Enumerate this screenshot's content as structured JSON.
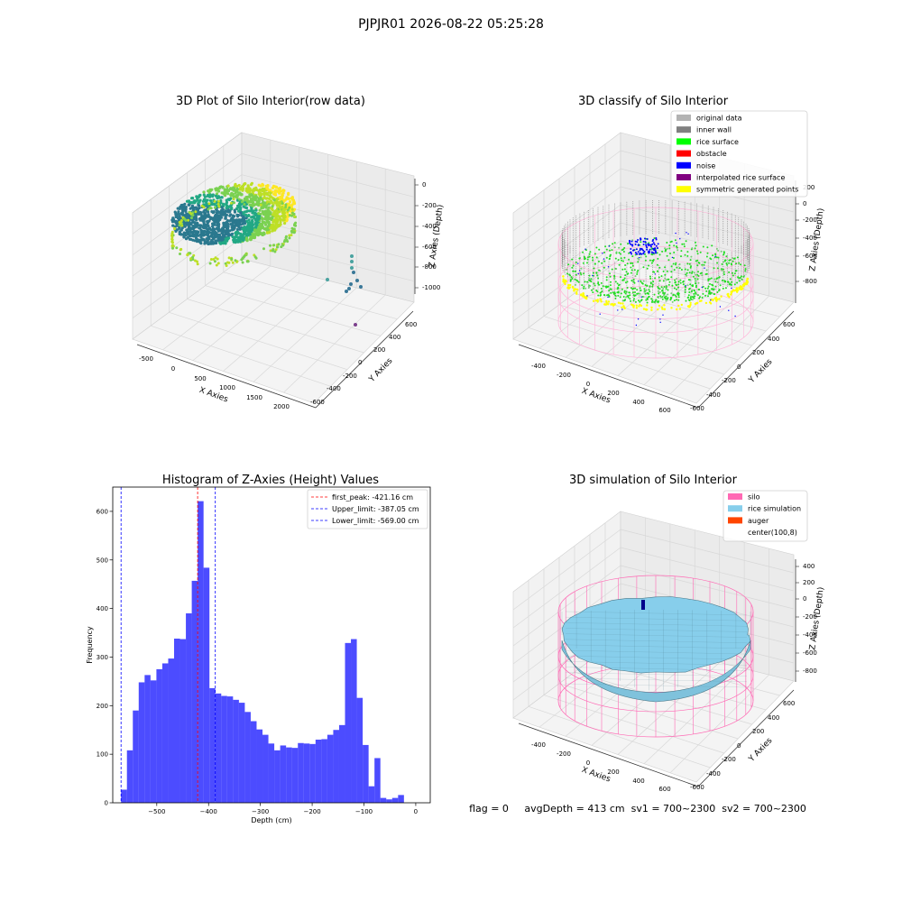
{
  "suptitle": "PJPJR01 2026-08-22 05:25:28",
  "panels": {
    "raw": {
      "title": "3D Plot of Silo Interior(row data)",
      "xlabel": "X Axies",
      "ylabel": "Y Axies",
      "zlabel": "Z Axies (Depth)",
      "xticks": [
        "-500",
        "0",
        "500",
        "1000",
        "1500",
        "2000"
      ],
      "yticks": [
        "-600",
        "-400",
        "-200",
        "0",
        "200",
        "400",
        "600"
      ],
      "zticks": [
        "0",
        "-200",
        "-400",
        "-600",
        "-800",
        "-1000"
      ]
    },
    "classify": {
      "title": "3D classify of Silo Interior",
      "xlabel": "X Axies",
      "ylabel": "Y Axies",
      "zlabel": "Z Axies (Depth)",
      "xticks": [
        "-400",
        "-200",
        "0",
        "200",
        "400",
        "600"
      ],
      "yticks": [
        "-600",
        "-400",
        "-200",
        "0",
        "200",
        "400",
        "600"
      ],
      "zticks": [
        "200",
        "0",
        "-200",
        "-400",
        "-600",
        "-800"
      ],
      "legend": [
        {
          "label": "original data",
          "color": "#b3b3b3"
        },
        {
          "label": "inner wall",
          "color": "#808080"
        },
        {
          "label": "rice surface",
          "color": "#00ff00"
        },
        {
          "label": "obstacle",
          "color": "#ff0000"
        },
        {
          "label": "noise",
          "color": "#0000ff"
        },
        {
          "label": "interpolated rice surface",
          "color": "#800080"
        },
        {
          "label": "symmetric generated points",
          "color": "#ffff00"
        }
      ]
    },
    "simulation": {
      "title": "3D simulation of Silo Interior",
      "xlabel": "X Axies",
      "ylabel": "Y Axies",
      "zlabel": "Z Axies (Depth)",
      "xticks": [
        "-400",
        "-200",
        "0",
        "200",
        "400",
        "600"
      ],
      "yticks": [
        "-600",
        "-400",
        "-200",
        "0",
        "200",
        "400",
        "600"
      ],
      "zticks": [
        "400",
        "200",
        "0",
        "-200",
        "-400",
        "-600",
        "-800"
      ],
      "legend": [
        {
          "label": "silo",
          "color": "#ff69b4"
        },
        {
          "label": "rice simulation",
          "color": "#87ceeb"
        },
        {
          "label": "auger",
          "color": "#ff4500"
        },
        {
          "label": "center(100,8)",
          "color": "none"
        }
      ]
    }
  },
  "status_line": "flag = 0     avgDepth = 413 cm  sv1 = 700~2300  sv2 = 700~2300",
  "chart_data": {
    "type": "bar",
    "title": "Histogram of Z-Axies (Height) Values",
    "xlabel": "Depth (cm)",
    "ylabel": "Frequency",
    "xlim": [
      -585,
      28
    ],
    "ylim": [
      0,
      650
    ],
    "xticks": [
      -500,
      -400,
      -300,
      -200,
      -100,
      0
    ],
    "yticks": [
      0,
      100,
      200,
      300,
      400,
      500,
      600
    ],
    "bar_color": "#0000ff",
    "bar_alpha": 0.7,
    "bin_start": -569,
    "bin_width": 11.38,
    "values": [
      27,
      108,
      190,
      248,
      263,
      252,
      275,
      287,
      297,
      338,
      337,
      390,
      457,
      621,
      484,
      236,
      225,
      220,
      219,
      212,
      206,
      187,
      168,
      151,
      140,
      122,
      108,
      118,
      114,
      113,
      123,
      122,
      121,
      130,
      131,
      140,
      150,
      160,
      329,
      337,
      216,
      119,
      34,
      92,
      10,
      7,
      10,
      16
    ],
    "lines": [
      {
        "label": "first_peak: -421.16 cm",
        "x": -421.16,
        "color": "#ff0000"
      },
      {
        "label": "Upper_limit: -387.05 cm",
        "x": -387.05,
        "color": "#0000ff"
      },
      {
        "label": "Lower_limit: -569.00 cm",
        "x": -569.0,
        "color": "#0000ff"
      }
    ],
    "legend_position": "top-right"
  }
}
